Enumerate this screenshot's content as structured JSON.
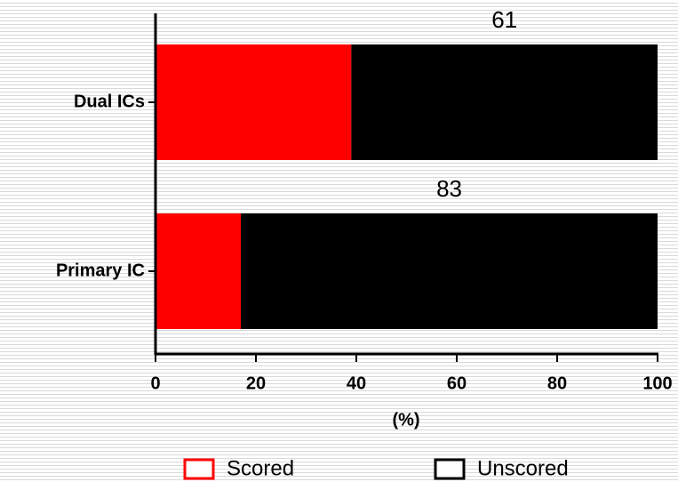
{
  "chart_data": {
    "type": "stacked-barh",
    "categories": [
      "Dual ICs",
      "Primary IC"
    ],
    "series": [
      {
        "name": "Scored",
        "color": "#ff0000",
        "values": [
          39,
          17
        ]
      },
      {
        "name": "Unscored",
        "color": "#000000",
        "values": [
          61,
          83
        ],
        "data_labels": true
      }
    ],
    "x_label": "(%)",
    "xlim": [
      0,
      100
    ],
    "xticks": [
      0,
      20,
      40,
      60,
      80,
      100
    ]
  }
}
